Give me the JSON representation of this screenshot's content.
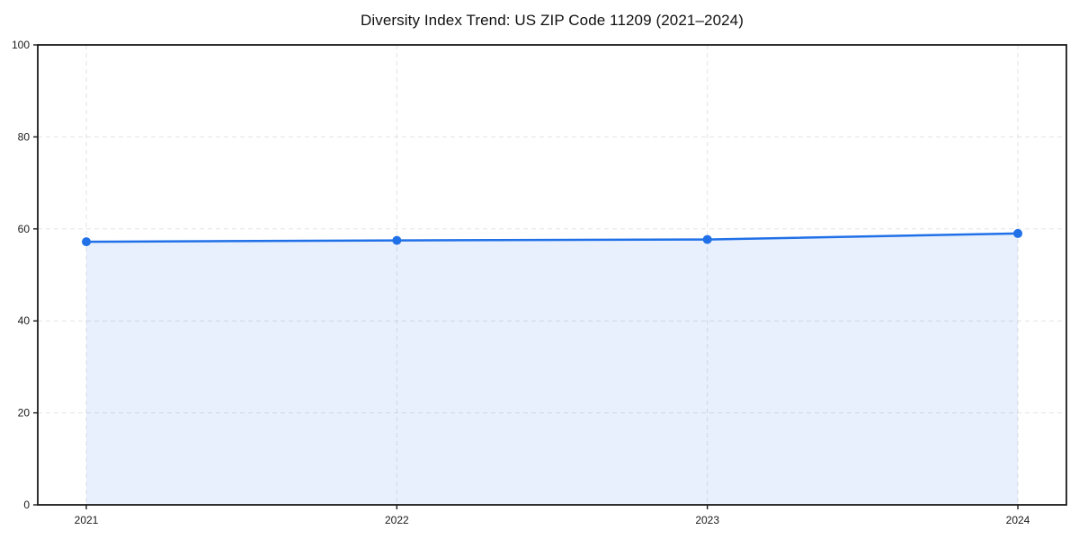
{
  "figure": {
    "title": "Diversity Index Trend: US ZIP Code 11209 (2021–2024)"
  },
  "chart_data": {
    "type": "area",
    "title": "Diversity Index Trend: US ZIP Code 11209 (2021–2024)",
    "x": [
      2021,
      2022,
      2023,
      2024
    ],
    "x_tick_labels": [
      "2021",
      "2022",
      "2023",
      "2024"
    ],
    "series": [
      {
        "name": "Diversity Index",
        "values": [
          57.2,
          57.5,
          57.7,
          59.0
        ]
      }
    ],
    "xlabel": "",
    "ylabel": "",
    "ylim": [
      0,
      100
    ],
    "yticks": [
      0,
      20,
      40,
      60,
      80,
      100
    ],
    "grid": "dashed both axes",
    "legend": "none",
    "frame": "full box",
    "colors": {
      "line": "#2070e8",
      "marker": "#2070e8",
      "area_fill": "rgba(32,112,232,0.10)",
      "grid": "#e3e3e3",
      "spine": "#1a1a1a",
      "tick_label": "#1a1a1a",
      "title": "#111111",
      "background": "#ffffff"
    }
  }
}
